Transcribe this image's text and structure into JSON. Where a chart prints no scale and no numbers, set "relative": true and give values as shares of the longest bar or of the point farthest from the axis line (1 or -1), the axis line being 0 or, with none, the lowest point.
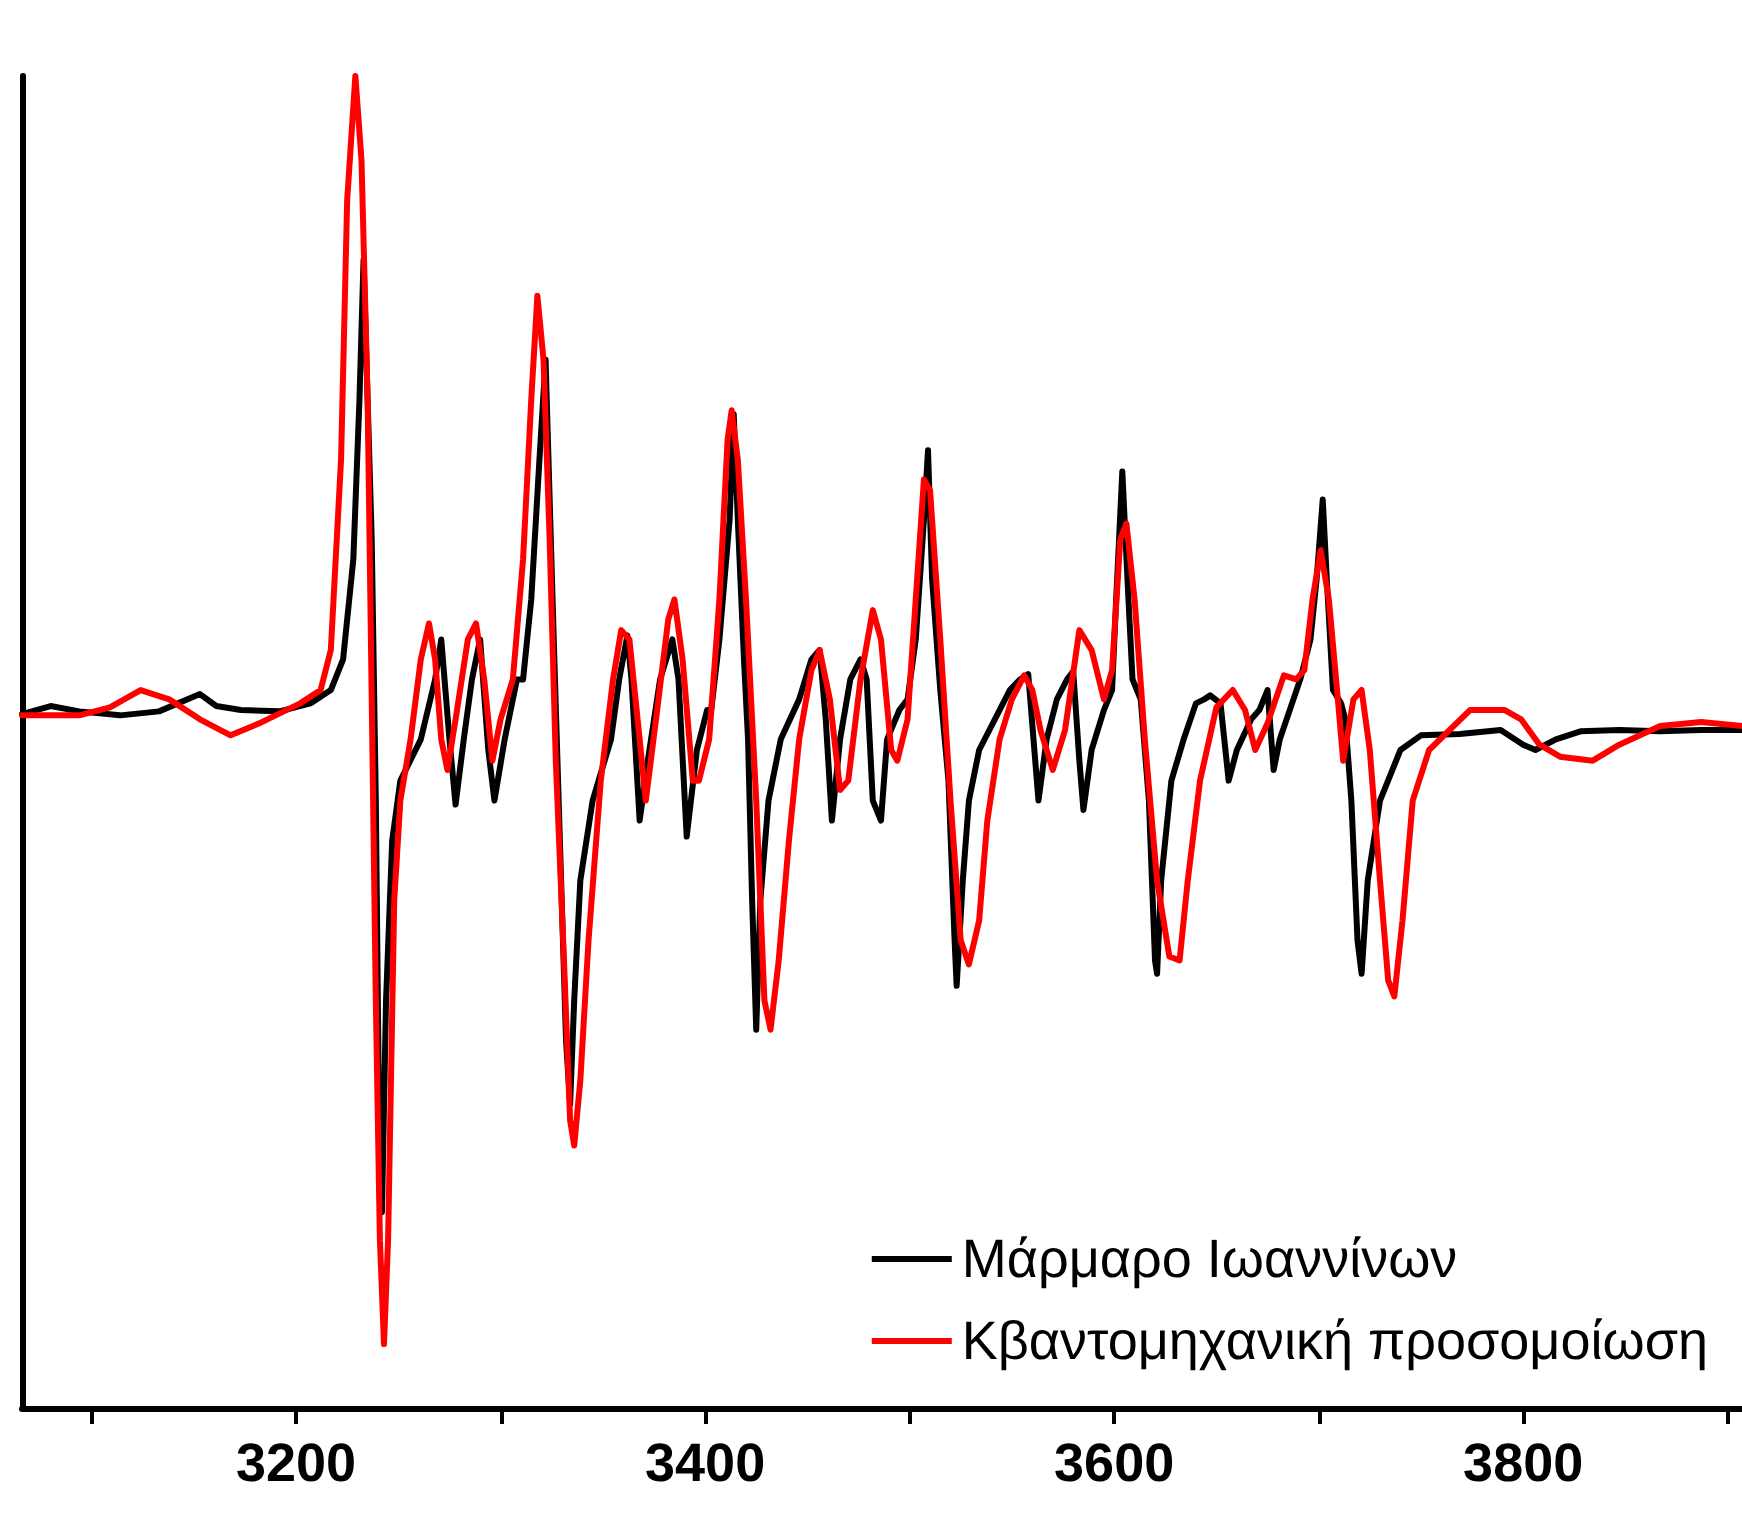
{
  "chart_data": {
    "type": "line",
    "relative": true,
    "xlim": [
      3066,
      3907
    ],
    "xticks": [
      {
        "value": 3100,
        "label": null
      },
      3200,
      {
        "value": 3300,
        "label": null
      },
      3400,
      {
        "value": 3500,
        "label": null
      },
      3600,
      {
        "value": 3700,
        "label": null
      },
      3800,
      {
        "value": 3900,
        "label": null
      }
    ],
    "legend": "bottom right",
    "grid": false,
    "marker": "none",
    "line_style": "solid",
    "series": [
      {
        "name": "Μάρμαρο Ιωαννίνων",
        "color": "#000000",
        "x": [
          3066,
          3080,
          3094,
          3114,
          3133,
          3153,
          3161,
          3173,
          3192,
          3207,
          3217,
          3223,
          3228,
          3231,
          3233,
          3235,
          3237,
          3239,
          3241,
          3242,
          3244,
          3247,
          3251,
          3261,
          3268,
          3271,
          3275,
          3278,
          3282,
          3286,
          3290,
          3294,
          3297,
          3302,
          3308,
          3311,
          3315,
          3319,
          3322,
          3324,
          3326,
          3329,
          3332,
          3334,
          3336,
          3339,
          3345,
          3354,
          3358,
          3362,
          3364,
          3368,
          3372,
          3378,
          3384,
          3387,
          3391,
          3396,
          3401,
          3403,
          3407,
          3412,
          3414,
          3416,
          3419,
          3421,
          3423,
          3425,
          3427,
          3431,
          3437,
          3446,
          3452,
          3456,
          3459,
          3462,
          3466,
          3471,
          3476,
          3479,
          3482,
          3486,
          3489,
          3495,
          3499,
          3503,
          3507,
          3509,
          3511,
          3515,
          3519,
          3522,
          3523,
          3526,
          3529,
          3534,
          3544,
          3549,
          3554,
          3558,
          3561,
          3563,
          3567,
          3572,
          3577,
          3580,
          3583,
          3585,
          3589,
          3595,
          3599,
          3601,
          3604,
          3607,
          3609,
          3613,
          3617,
          3620,
          3621,
          3623,
          3628,
          3634,
          3640,
          3644,
          3647,
          3652,
          3656,
          3660,
          3667,
          3671,
          3675,
          3678,
          3681,
          3691,
          3696,
          3699,
          3702,
          3704,
          3707,
          3711,
          3713,
          3716,
          3719,
          3721,
          3724,
          3730,
          3740,
          3750,
          3769,
          3789,
          3800,
          3806,
          3816,
          3828,
          3847,
          3867,
          3887,
          3907
        ],
        "values": [
          0.521,
          0.527,
          0.523,
          0.52,
          0.523,
          0.536,
          0.527,
          0.524,
          0.523,
          0.529,
          0.539,
          0.562,
          0.637,
          0.757,
          0.862,
          0.757,
          0.652,
          0.456,
          0.156,
          0.147,
          0.306,
          0.426,
          0.471,
          0.502,
          0.547,
          0.577,
          0.502,
          0.453,
          0.502,
          0.547,
          0.577,
          0.494,
          0.456,
          0.502,
          0.547,
          0.547,
          0.607,
          0.712,
          0.787,
          0.682,
          0.577,
          0.426,
          0.276,
          0.228,
          0.306,
          0.396,
          0.456,
          0.502,
          0.547,
          0.58,
          0.547,
          0.441,
          0.486,
          0.547,
          0.577,
          0.547,
          0.429,
          0.494,
          0.524,
          0.524,
          0.577,
          0.667,
          0.746,
          0.667,
          0.562,
          0.502,
          0.381,
          0.284,
          0.381,
          0.456,
          0.502,
          0.532,
          0.562,
          0.569,
          0.517,
          0.441,
          0.502,
          0.547,
          0.562,
          0.547,
          0.456,
          0.441,
          0.502,
          0.524,
          0.532,
          0.577,
          0.667,
          0.719,
          0.622,
          0.539,
          0.471,
          0.351,
          0.317,
          0.396,
          0.456,
          0.494,
          0.524,
          0.539,
          0.547,
          0.551,
          0.494,
          0.456,
          0.502,
          0.532,
          0.547,
          0.553,
          0.486,
          0.449,
          0.494,
          0.524,
          0.539,
          0.607,
          0.703,
          0.607,
          0.547,
          0.532,
          0.456,
          0.336,
          0.326,
          0.396,
          0.471,
          0.502,
          0.529,
          0.532,
          0.535,
          0.529,
          0.471,
          0.494,
          0.517,
          0.524,
          0.539,
          0.479,
          0.502,
          0.547,
          0.577,
          0.622,
          0.682,
          0.622,
          0.539,
          0.529,
          0.517,
          0.456,
          0.351,
          0.326,
          0.396,
          0.456,
          0.494,
          0.505,
          0.506,
          0.509,
          0.498,
          0.494,
          0.502,
          0.508,
          0.509,
          0.508,
          0.509,
          0.509
        ]
      },
      {
        "name": "Κβαντομηχανική προσομοίωση",
        "color": "#ff0000",
        "x": [
          3066,
          3094,
          3109,
          3124,
          3138,
          3153,
          3168,
          3182,
          3202,
          3212,
          3217,
          3222,
          3225,
          3229,
          3232,
          3235,
          3237,
          3239,
          3241,
          3243,
          3245,
          3248,
          3251,
          3256,
          3261,
          3265,
          3268,
          3271,
          3274,
          3278,
          3284,
          3288,
          3292,
          3296,
          3300,
          3306,
          3311,
          3315,
          3318,
          3321,
          3324,
          3327,
          3331,
          3334,
          3336,
          3339,
          3343,
          3349,
          3355,
          3359,
          3363,
          3368,
          3371,
          3376,
          3382,
          3385,
          3389,
          3394,
          3397,
          3402,
          3407,
          3411,
          3413,
          3416,
          3420,
          3425,
          3429,
          3432,
          3436,
          3441,
          3446,
          3452,
          3456,
          3461,
          3466,
          3470,
          3476,
          3482,
          3486,
          3491,
          3494,
          3499,
          3503,
          3507,
          3510,
          3515,
          3520,
          3525,
          3529,
          3534,
          3538,
          3544,
          3550,
          3556,
          3560,
          3564,
          3570,
          3576,
          3583,
          3589,
          3595,
          3599,
          3603,
          3606,
          3610,
          3615,
          3621,
          3627,
          3632,
          3636,
          3642,
          3650,
          3658,
          3664,
          3669,
          3675,
          3683,
          3689,
          3693,
          3697,
          3701,
          3705,
          3709,
          3712,
          3717,
          3721,
          3725,
          3730,
          3734,
          3737,
          3741,
          3746,
          3754,
          3774,
          3791,
          3799,
          3808,
          3818,
          3834,
          3847,
          3867,
          3887,
          3907
        ],
        "values": [
          0.52,
          0.52,
          0.526,
          0.539,
          0.532,
          0.517,
          0.505,
          0.514,
          0.529,
          0.539,
          0.569,
          0.712,
          0.907,
          1.0,
          0.937,
          0.757,
          0.532,
          0.306,
          0.126,
          0.048,
          0.126,
          0.381,
          0.456,
          0.502,
          0.562,
          0.589,
          0.562,
          0.502,
          0.479,
          0.517,
          0.577,
          0.589,
          0.547,
          0.486,
          0.517,
          0.547,
          0.637,
          0.757,
          0.835,
          0.787,
          0.652,
          0.486,
          0.336,
          0.216,
          0.197,
          0.246,
          0.351,
          0.471,
          0.547,
          0.584,
          0.577,
          0.502,
          0.456,
          0.517,
          0.592,
          0.607,
          0.562,
          0.471,
          0.471,
          0.502,
          0.607,
          0.727,
          0.749,
          0.712,
          0.607,
          0.456,
          0.306,
          0.284,
          0.336,
          0.426,
          0.502,
          0.554,
          0.569,
          0.532,
          0.464,
          0.471,
          0.547,
          0.599,
          0.577,
          0.494,
          0.486,
          0.517,
          0.607,
          0.697,
          0.689,
          0.577,
          0.456,
          0.351,
          0.333,
          0.366,
          0.441,
          0.502,
          0.532,
          0.55,
          0.539,
          0.509,
          0.479,
          0.509,
          0.584,
          0.569,
          0.532,
          0.554,
          0.652,
          0.664,
          0.607,
          0.502,
          0.396,
          0.339,
          0.336,
          0.396,
          0.471,
          0.526,
          0.539,
          0.524,
          0.494,
          0.514,
          0.55,
          0.547,
          0.554,
          0.607,
          0.644,
          0.607,
          0.539,
          0.486,
          0.532,
          0.539,
          0.494,
          0.396,
          0.321,
          0.309,
          0.366,
          0.456,
          0.494,
          0.524,
          0.524,
          0.517,
          0.498,
          0.489,
          0.486,
          0.498,
          0.512,
          0.515,
          0.512
        ]
      }
    ]
  }
}
